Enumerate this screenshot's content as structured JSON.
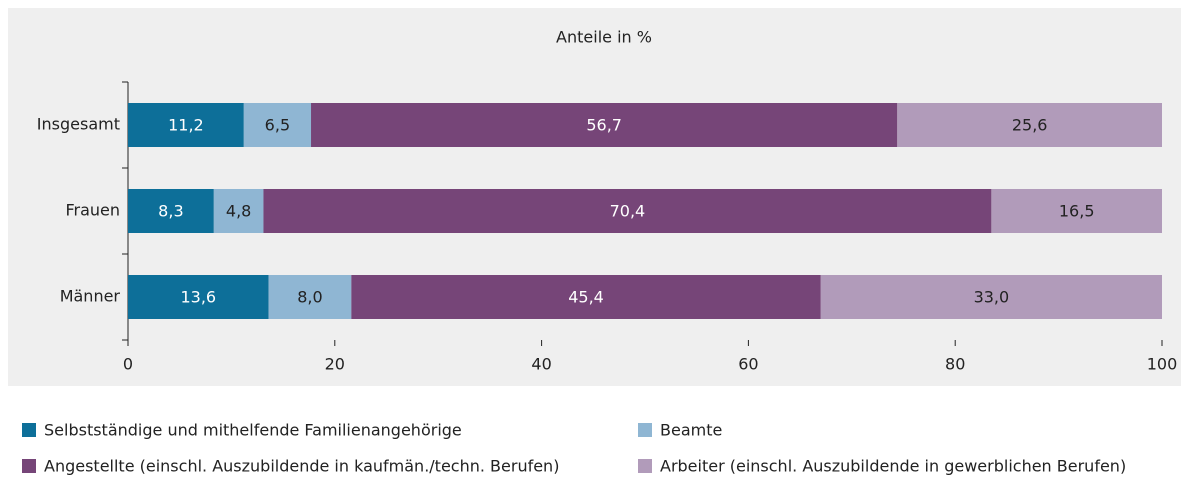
{
  "chart_data": {
    "type": "stacked_barh",
    "title": "Anteile in %",
    "categories": [
      "Insgesamt",
      "Frauen",
      "Männer"
    ],
    "series": [
      {
        "name": "Selbstständige und mithelfende Familienangehörige",
        "color": "#0d6f99",
        "values": [
          11.2,
          8.3,
          13.6
        ],
        "value_labels": [
          "11,2",
          "8,3",
          "13,6"
        ]
      },
      {
        "name": "Beamte",
        "color": "#8fb6d3",
        "values": [
          6.5,
          4.8,
          8.0
        ],
        "value_labels": [
          "6,5",
          "4,8",
          "8,0"
        ]
      },
      {
        "name": "Angestellte (einschl. Auszubildende in kaufmän./techn. Berufen)",
        "color": "#764578",
        "values": [
          56.7,
          70.4,
          45.4
        ],
        "value_labels": [
          "56,7",
          "70,4",
          "45,4"
        ]
      },
      {
        "name": "Arbeiter (einschl. Auszubildende in gewerblichen Berufen)",
        "color": "#b19bba",
        "values": [
          25.6,
          16.5,
          33.0
        ],
        "value_labels": [
          "25,6",
          "16,5",
          "33,0"
        ]
      }
    ],
    "xlim": [
      0,
      100
    ],
    "xticks": [
      0,
      20,
      40,
      60,
      80,
      100
    ]
  }
}
